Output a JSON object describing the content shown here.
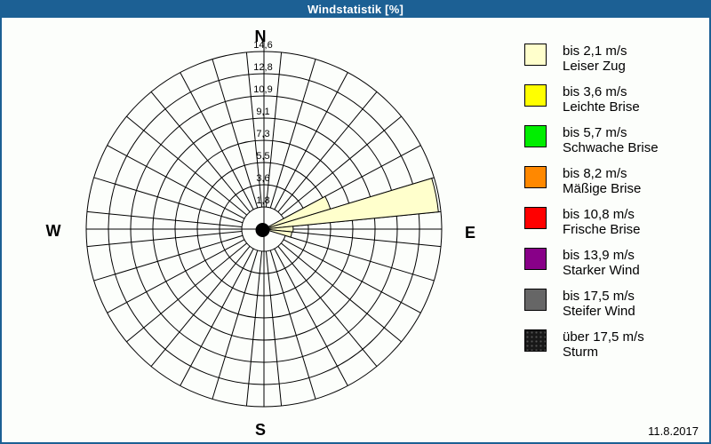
{
  "window": {
    "title": "Windstatistik [%]",
    "title_bar_color": "#1c6094",
    "border_color": "#1c6094",
    "background_color": "#fcfefb"
  },
  "footer": {
    "date": "11.8.2017"
  },
  "chart_data": {
    "type": "wind_rose_polar_bar",
    "units": "%",
    "title": "Windstatistik [%]",
    "compass_labels": {
      "n": "N",
      "e": "E",
      "s": "S",
      "w": "W"
    },
    "radial_ticks": [
      "1,8",
      "3,6",
      "5,5",
      "7,3",
      "9,1",
      "10,9",
      "12,8",
      "14,6"
    ],
    "radial_tick_values": [
      1.8,
      3.65,
      5.48,
      7.3,
      9.13,
      10.95,
      12.78,
      14.6
    ],
    "radial_max": 14.6,
    "sector_count": 32,
    "sector_width_deg": 11.25,
    "grid_ring_count": 8,
    "grid_color": "#000000",
    "petals": [
      {
        "direction": "ENE",
        "direction_deg": 67.5,
        "value_pct": 5.7,
        "speed_class": "bis 2,1 m/s",
        "color": "#ffffcc"
      },
      {
        "direction": "E by N",
        "direction_deg": 78.75,
        "value_pct": 14.4,
        "speed_class": "bis 2,1 m/s",
        "color": "#ffffcc"
      },
      {
        "direction": "E",
        "direction_deg": 90,
        "value_pct": 2.4,
        "speed_class": "bis 2,1 m/s",
        "color": "#ffffcc"
      },
      {
        "direction": "E by S",
        "direction_deg": 101.25,
        "value_pct": 2.3,
        "speed_class": "bis 2,1 m/s",
        "color": "#ffffcc"
      }
    ],
    "center_blob": {
      "value_pct": 0.4,
      "color": "#000000"
    }
  },
  "legend": {
    "items": [
      {
        "label": "bis 2,1 m/s",
        "name": "Leiser Zug",
        "color": "#ffffcc",
        "textured": false
      },
      {
        "label": "bis 3,6 m/s",
        "name": "Leichte Brise",
        "color": "#ffff00",
        "textured": false
      },
      {
        "label": "bis 5,7 m/s",
        "name": "Schwache Brise",
        "color": "#00ee00",
        "textured": false
      },
      {
        "label": "bis 8,2 m/s",
        "name": "Mäßige Brise",
        "color": "#ff8800",
        "textured": false
      },
      {
        "label": "bis 10,8 m/s",
        "name": "Frische Brise",
        "color": "#ff0000",
        "textured": false
      },
      {
        "label": "bis 13,9 m/s",
        "name": "Starker Wind",
        "color": "#880088",
        "textured": false
      },
      {
        "label": "bis 17,5 m/s",
        "name": "Steifer Wind",
        "color": "#666666",
        "textured": false
      },
      {
        "label": "über 17,5 m/s",
        "name": "Sturm",
        "color": "#1a1a1a",
        "textured": true
      }
    ]
  }
}
